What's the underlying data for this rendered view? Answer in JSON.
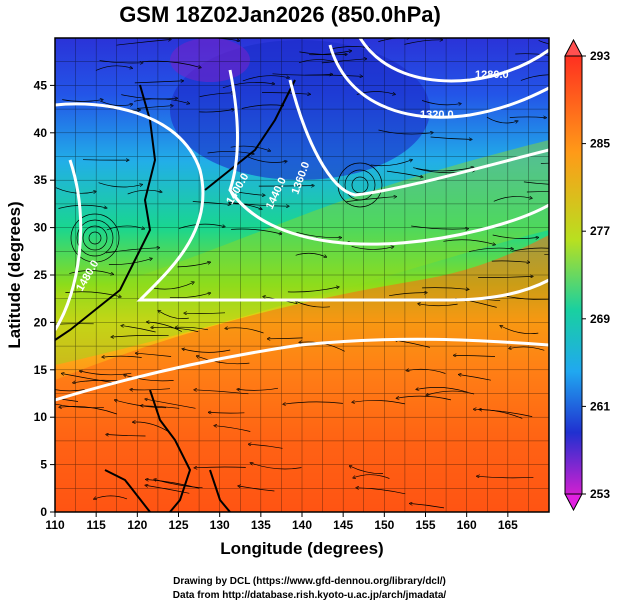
{
  "title": "GSM 18Z02Jan2026 (850.0hPa)",
  "x_axis": {
    "label": "Longitude (degrees)",
    "ticks": [
      "110",
      "115",
      "120",
      "125",
      "130",
      "135",
      "140",
      "145",
      "150",
      "155",
      "160",
      "165"
    ],
    "range": [
      110,
      170
    ]
  },
  "y_axis": {
    "label": "Latitude  (degrees)",
    "ticks": [
      "0",
      "5",
      "10",
      "15",
      "20",
      "25",
      "30",
      "35",
      "40",
      "45"
    ],
    "range": [
      0,
      50
    ]
  },
  "colorbar": {
    "ticks": [
      "293",
      "285",
      "277",
      "269",
      "261",
      "253"
    ],
    "range": [
      253,
      293
    ],
    "colors": [
      "#ff2a2a",
      "#ff8a1a",
      "#c8e614",
      "#14c878",
      "#19b0e6",
      "#2050ff",
      "#2020c8",
      "#cc20cc"
    ]
  },
  "contour_labels": [
    "1280.0",
    "1320.0",
    "1360.0",
    "1400.0",
    "1440.0",
    "1480.0"
  ],
  "credits": {
    "line1": "Drawing by DCL (https://www.gfd-dennou.org/library/dcl/)",
    "line2": "Data from http://database.rish.kyoto-u.ac.jp/arch/jmadata/"
  }
}
